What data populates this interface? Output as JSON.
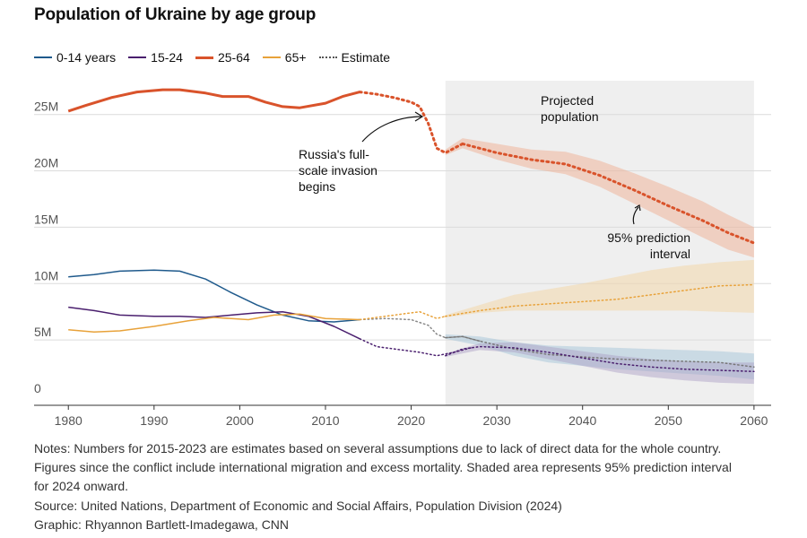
{
  "title": "Population of Ukraine by age group",
  "legend": [
    {
      "label": "0-14 years",
      "color": "#1f5a8c",
      "style": "solid"
    },
    {
      "label": "15-24",
      "color": "#4a1f6e",
      "style": "solid"
    },
    {
      "label": "25-64",
      "color": "#d9532b",
      "style": "solid"
    },
    {
      "label": "65+",
      "color": "#e8a23a",
      "style": "solid"
    },
    {
      "label": "Estimate",
      "color": "#555555",
      "style": "dotted"
    }
  ],
  "chart_data": {
    "type": "line",
    "title": "Population of Ukraine by age group",
    "xlabel": "",
    "ylabel": "",
    "xlim": [
      1976,
      2062
    ],
    "ylim": [
      -800000,
      28000000
    ],
    "xticks": [
      1980,
      1990,
      2000,
      2010,
      2020,
      2030,
      2040,
      2050,
      2060
    ],
    "yticks": [
      {
        "value": 0,
        "label": "0"
      },
      {
        "value": 5000000,
        "label": "5M"
      },
      {
        "value": 10000000,
        "label": "10M"
      },
      {
        "value": 15000000,
        "label": "15M"
      },
      {
        "value": 20000000,
        "label": "20M"
      },
      {
        "value": 25000000,
        "label": "25M"
      }
    ],
    "projection_range": [
      2024,
      2060
    ],
    "series": [
      {
        "name": "0-14 years",
        "color": "#1f5a8c",
        "observed": [
          [
            1980,
            10.6
          ],
          [
            1983,
            10.8
          ],
          [
            1986,
            11.1
          ],
          [
            1990,
            11.2
          ],
          [
            1993,
            11.1
          ],
          [
            1996,
            10.4
          ],
          [
            1999,
            9.2
          ],
          [
            2002,
            8.1
          ],
          [
            2005,
            7.2
          ],
          [
            2008,
            6.7
          ],
          [
            2011,
            6.6
          ],
          [
            2014,
            6.8
          ]
        ],
        "estimate": [
          [
            2014,
            6.8
          ],
          [
            2017,
            6.9
          ],
          [
            2020,
            6.8
          ],
          [
            2022,
            6.3
          ],
          [
            2023,
            5.5
          ],
          [
            2024,
            5.2
          ],
          [
            2026,
            5.3
          ],
          [
            2028,
            4.9
          ]
        ],
        "projection": [
          [
            2024,
            5.2
          ],
          [
            2026,
            5.3
          ],
          [
            2028,
            4.9
          ],
          [
            2032,
            4.2
          ],
          [
            2036,
            3.7
          ],
          [
            2040,
            3.5
          ],
          [
            2044,
            3.3
          ],
          [
            2048,
            3.2
          ],
          [
            2052,
            3.1
          ],
          [
            2056,
            3.0
          ],
          [
            2060,
            2.6
          ]
        ],
        "band": [
          [
            2024,
            5.1,
            5.5
          ],
          [
            2028,
            4.5,
            5.3
          ],
          [
            2032,
            3.6,
            4.8
          ],
          [
            2036,
            3.0,
            4.5
          ],
          [
            2040,
            2.7,
            4.4
          ],
          [
            2044,
            2.4,
            4.3
          ],
          [
            2048,
            2.2,
            4.2
          ],
          [
            2052,
            2.0,
            4.1
          ],
          [
            2056,
            1.8,
            4.0
          ],
          [
            2060,
            1.5,
            3.8
          ]
        ]
      },
      {
        "name": "15-24",
        "color": "#4a1f6e",
        "observed": [
          [
            1980,
            7.9
          ],
          [
            1983,
            7.6
          ],
          [
            1986,
            7.2
          ],
          [
            1990,
            7.1
          ],
          [
            1993,
            7.1
          ],
          [
            1996,
            7.0
          ],
          [
            1999,
            7.2
          ],
          [
            2002,
            7.4
          ],
          [
            2005,
            7.5
          ],
          [
            2008,
            7.1
          ],
          [
            2011,
            6.2
          ],
          [
            2014,
            5.1
          ]
        ],
        "estimate": [
          [
            2014,
            5.1
          ],
          [
            2016,
            4.4
          ],
          [
            2019,
            4.1
          ],
          [
            2021,
            3.9
          ],
          [
            2023,
            3.6
          ],
          [
            2025,
            3.9
          ],
          [
            2027,
            4.3
          ]
        ],
        "projection": [
          [
            2024,
            3.6
          ],
          [
            2026,
            4.2
          ],
          [
            2028,
            4.4
          ],
          [
            2032,
            4.3
          ],
          [
            2036,
            3.9
          ],
          [
            2040,
            3.4
          ],
          [
            2044,
            2.9
          ],
          [
            2048,
            2.6
          ],
          [
            2052,
            2.4
          ],
          [
            2056,
            2.3
          ],
          [
            2060,
            2.2
          ]
        ],
        "band": [
          [
            2024,
            3.5,
            3.8
          ],
          [
            2028,
            4.1,
            4.7
          ],
          [
            2032,
            3.9,
            4.8
          ],
          [
            2036,
            3.3,
            4.4
          ],
          [
            2040,
            2.7,
            4.0
          ],
          [
            2044,
            2.1,
            3.6
          ],
          [
            2048,
            1.7,
            3.3
          ],
          [
            2052,
            1.4,
            3.1
          ],
          [
            2056,
            1.2,
            3.0
          ],
          [
            2060,
            1.1,
            3.0
          ]
        ]
      },
      {
        "name": "25-64",
        "color": "#d9532b",
        "observed": [
          [
            1980,
            25.3
          ],
          [
            1982,
            25.8
          ],
          [
            1985,
            26.5
          ],
          [
            1988,
            27.0
          ],
          [
            1991,
            27.2
          ],
          [
            1993,
            27.2
          ],
          [
            1996,
            26.9
          ],
          [
            1998,
            26.6
          ],
          [
            2001,
            26.6
          ],
          [
            2003,
            26.1
          ],
          [
            2005,
            25.7
          ],
          [
            2007,
            25.6
          ],
          [
            2010,
            26.0
          ],
          [
            2012,
            26.6
          ],
          [
            2014,
            27.0
          ]
        ],
        "estimate": [
          [
            2014,
            27.0
          ],
          [
            2016,
            26.8
          ],
          [
            2018,
            26.5
          ],
          [
            2020,
            26.1
          ],
          [
            2021,
            25.7
          ],
          [
            2022,
            24.2
          ],
          [
            2023,
            22.0
          ],
          [
            2024,
            21.6
          ],
          [
            2025,
            22.0
          ],
          [
            2026,
            22.4
          ]
        ],
        "projection": [
          [
            2026,
            22.4
          ],
          [
            2030,
            21.6
          ],
          [
            2034,
            21.0
          ],
          [
            2038,
            20.6
          ],
          [
            2042,
            19.6
          ],
          [
            2046,
            18.3
          ],
          [
            2050,
            16.9
          ],
          [
            2054,
            15.6
          ],
          [
            2057,
            14.5
          ],
          [
            2060,
            13.6
          ]
        ],
        "band": [
          [
            2024,
            21.4,
            21.9
          ],
          [
            2026,
            22.0,
            22.9
          ],
          [
            2030,
            21.0,
            22.4
          ],
          [
            2034,
            20.2,
            21.9
          ],
          [
            2038,
            19.7,
            21.7
          ],
          [
            2042,
            18.6,
            20.9
          ],
          [
            2046,
            17.1,
            19.8
          ],
          [
            2050,
            15.6,
            18.6
          ],
          [
            2054,
            14.1,
            17.3
          ],
          [
            2057,
            13.0,
            16.1
          ],
          [
            2060,
            12.3,
            15.0
          ]
        ]
      },
      {
        "name": "65+",
        "color": "#e8a23a",
        "observed": [
          [
            1980,
            5.9
          ],
          [
            1983,
            5.7
          ],
          [
            1986,
            5.8
          ],
          [
            1990,
            6.2
          ],
          [
            1994,
            6.7
          ],
          [
            1997,
            7.0
          ],
          [
            2001,
            6.8
          ],
          [
            2004,
            7.2
          ],
          [
            2007,
            7.3
          ],
          [
            2010,
            6.9
          ],
          [
            2014,
            6.8
          ]
        ],
        "estimate": [
          [
            2014,
            6.8
          ],
          [
            2017,
            7.1
          ],
          [
            2020,
            7.4
          ],
          [
            2021,
            7.5
          ],
          [
            2023,
            6.9
          ],
          [
            2024,
            7.1
          ]
        ],
        "projection": [
          [
            2024,
            7.1
          ],
          [
            2028,
            7.6
          ],
          [
            2032,
            8.0
          ],
          [
            2036,
            8.2
          ],
          [
            2040,
            8.4
          ],
          [
            2044,
            8.6
          ],
          [
            2048,
            9.0
          ],
          [
            2052,
            9.4
          ],
          [
            2056,
            9.8
          ],
          [
            2060,
            9.9
          ]
        ],
        "band": [
          [
            2024,
            7.0,
            7.2
          ],
          [
            2028,
            7.4,
            8.1
          ],
          [
            2032,
            7.6,
            9.0
          ],
          [
            2036,
            7.6,
            9.5
          ],
          [
            2040,
            7.6,
            10.0
          ],
          [
            2044,
            7.6,
            10.6
          ],
          [
            2048,
            7.6,
            11.2
          ],
          [
            2052,
            7.6,
            11.6
          ],
          [
            2056,
            7.5,
            11.9
          ],
          [
            2060,
            7.4,
            12.1
          ]
        ]
      }
    ],
    "annotations": [
      {
        "text": "Projected\npopulation"
      },
      {
        "text": "Russia's full-\nscale invasion\nbegins"
      },
      {
        "text": "95% prediction\ninterval"
      }
    ]
  },
  "notes": "Notes: Numbers for 2015-2023 are estimates based on several assumptions due to lack of direct data for the whole country. Figures since the conflict include international migration and excess mortality. Shaded area represents 95% prediction interval for 2024 onward.",
  "source": "Source: United Nations, Department of Economic and Social Affairs, Population Division (2024)",
  "credit": "Graphic: Rhyannon Bartlett-Imadegawa, CNN"
}
